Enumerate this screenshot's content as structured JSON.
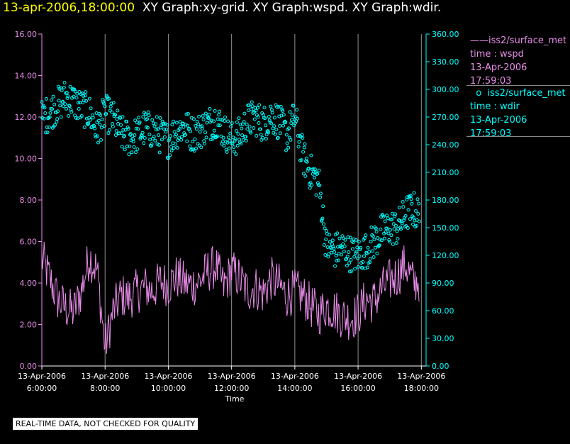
{
  "header": {
    "datetime": "13-apr-2006,18:00:00",
    "graphs": "XY Graph:xy-grid.  XY Graph:wspd.  XY Graph:wdir."
  },
  "legend": [
    {
      "symbol": "——",
      "name": "iss2/surface_met",
      "var": "time : wspd",
      "date": "13-Apr-2006",
      "time": "17:59:03"
    },
    {
      "symbol": "o",
      "name": "iss2/surface_met",
      "var": "time : wdir",
      "date": "13-Apr-2006",
      "time": "17:59:03"
    }
  ],
  "footer": "REAL-TIME DATA, NOT CHECKED FOR QUALITY",
  "colors": {
    "wspd": "#e88ce8",
    "wdir": "#00ffff",
    "grid": "#909090",
    "axis": "#ffffff"
  },
  "chart_data": {
    "type": "line",
    "xlabel": "Time",
    "xlim": [
      6.0,
      18.15
    ],
    "x_ticks": [
      {
        "v": 6,
        "date": "13-Apr-2006",
        "time": "6:00:00"
      },
      {
        "v": 8,
        "date": "13-Apr-2006",
        "time": "8:00:00"
      },
      {
        "v": 10,
        "date": "13-Apr-2006",
        "time": "10:00:00"
      },
      {
        "v": 12,
        "date": "13-Apr-2006",
        "time": "12:00:00"
      },
      {
        "v": 14,
        "date": "13-Apr-2006",
        "time": "14:00:00"
      },
      {
        "v": 16,
        "date": "13-Apr-2006",
        "time": "16:00:00"
      },
      {
        "v": 18,
        "date": "13-Apr-2006",
        "time": "18:00:00"
      }
    ],
    "grid_x": [
      8,
      10,
      12,
      14,
      16,
      18
    ],
    "y_left": {
      "lim": [
        0,
        16
      ],
      "ticks": [
        "0.00",
        "2.00",
        "4.00",
        "6.00",
        "8.00",
        "10.00",
        "12.00",
        "14.00",
        "16.00"
      ]
    },
    "y_right": {
      "lim": [
        0,
        360
      ],
      "ticks": [
        "0.00",
        "30.00",
        "60.00",
        "90.00",
        "120.00",
        "150.00",
        "180.00",
        "210.00",
        "240.00",
        "270.00",
        "300.00",
        "330.00",
        "360.00"
      ]
    },
    "series": [
      {
        "name": "wspd",
        "axis": "left",
        "style": "line",
        "x": [
          6.0,
          6.25,
          6.5,
          6.75,
          7.0,
          7.25,
          7.5,
          7.75,
          8.0,
          8.25,
          8.5,
          8.75,
          9.0,
          9.25,
          9.5,
          9.75,
          10.0,
          10.25,
          10.5,
          10.75,
          11.0,
          11.25,
          11.5,
          11.75,
          12.0,
          12.25,
          12.5,
          12.75,
          13.0,
          13.25,
          13.5,
          13.75,
          14.0,
          14.25,
          14.5,
          14.75,
          15.0,
          15.25,
          15.5,
          15.75,
          16.0,
          16.25,
          16.5,
          16.75,
          17.0,
          17.25,
          17.5,
          17.75,
          18.0
        ],
        "values": [
          5.2,
          4.2,
          3.2,
          2.8,
          2.6,
          3.6,
          5.3,
          4.6,
          0.9,
          2.6,
          3.4,
          3.3,
          3.6,
          3.8,
          3.6,
          4.1,
          3.9,
          4.3,
          4.0,
          3.9,
          4.1,
          4.6,
          4.8,
          3.8,
          4.6,
          4.2,
          3.6,
          3.8,
          3.5,
          4.2,
          3.9,
          3.4,
          3.6,
          3.4,
          2.9,
          2.5,
          2.9,
          2.7,
          2.4,
          2.3,
          2.5,
          3.2,
          3.1,
          3.7,
          4.1,
          4.4,
          4.9,
          4.0,
          4.2
        ]
      },
      {
        "name": "wdir",
        "axis": "right",
        "style": "circles",
        "x": [
          6.0,
          6.25,
          6.5,
          6.75,
          7.0,
          7.25,
          7.5,
          7.75,
          8.0,
          8.25,
          8.5,
          8.75,
          9.0,
          9.25,
          9.5,
          9.75,
          10.0,
          10.25,
          10.5,
          10.75,
          11.0,
          11.25,
          11.5,
          11.75,
          12.0,
          12.25,
          12.5,
          12.75,
          13.0,
          13.25,
          13.5,
          13.75,
          14.0,
          14.25,
          14.5,
          14.75,
          15.0,
          15.25,
          15.5,
          15.75,
          16.0,
          16.25,
          16.5,
          16.75,
          17.0,
          17.25,
          17.5,
          17.75,
          18.0
        ],
        "values": [
          268,
          275,
          283,
          292,
          287,
          280,
          275,
          255,
          275,
          268,
          252,
          247,
          250,
          258,
          255,
          250,
          245,
          255,
          260,
          252,
          255,
          262,
          268,
          255,
          245,
          250,
          265,
          270,
          262,
          272,
          265,
          250,
          270,
          228,
          210,
          200,
          130,
          125,
          128,
          122,
          120,
          125,
          135,
          145,
          150,
          150,
          165,
          170,
          160
        ]
      }
    ]
  }
}
